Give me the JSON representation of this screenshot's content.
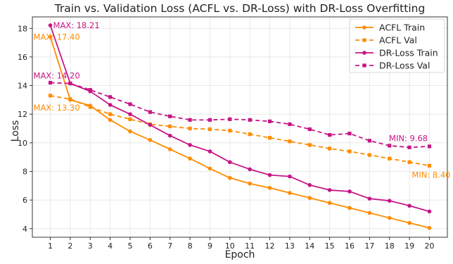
{
  "chart_data": {
    "type": "line",
    "title": "Train vs. Validation Loss (ACFL vs. DR-Loss) with DR-Loss Overfitting",
    "xlabel": "Epoch",
    "ylabel": "Loss",
    "x": [
      1,
      2,
      3,
      4,
      5,
      6,
      7,
      8,
      9,
      10,
      11,
      12,
      13,
      14,
      15,
      16,
      17,
      18,
      19,
      20
    ],
    "xlim": [
      0.1,
      20.9
    ],
    "ylim": [
      3.4,
      18.8
    ],
    "yticks": [
      4,
      6,
      8,
      10,
      12,
      14,
      16,
      18
    ],
    "grid": true,
    "legend_position": "top-right",
    "series": [
      {
        "name": "ACFL Train",
        "color": "#ff8c00",
        "dash": "solid",
        "marker": "circle",
        "values": [
          17.4,
          13.0,
          12.6,
          11.6,
          10.8,
          10.2,
          9.55,
          8.9,
          8.2,
          7.55,
          7.15,
          6.85,
          6.5,
          6.15,
          5.8,
          5.45,
          5.1,
          4.75,
          4.4,
          4.05
        ]
      },
      {
        "name": "ACFL Val",
        "color": "#ff8c00",
        "dash": "dashed",
        "marker": "square",
        "values": [
          13.3,
          13.05,
          12.5,
          12.0,
          11.65,
          11.3,
          11.15,
          11.0,
          10.95,
          10.85,
          10.6,
          10.35,
          10.1,
          9.85,
          9.6,
          9.4,
          9.15,
          8.9,
          8.65,
          8.4
        ]
      },
      {
        "name": "DR-Loss Train",
        "color": "#c71585",
        "dash": "solid",
        "marker": "circle",
        "values": [
          18.21,
          14.15,
          13.6,
          12.65,
          12.0,
          11.25,
          10.5,
          9.85,
          9.4,
          8.65,
          8.15,
          7.75,
          7.65,
          7.05,
          6.7,
          6.6,
          6.1,
          5.95,
          5.6,
          5.2
        ]
      },
      {
        "name": "DR-Loss Val",
        "color": "#c71585",
        "dash": "dashed",
        "marker": "square",
        "values": [
          14.2,
          14.15,
          13.7,
          13.2,
          12.7,
          12.15,
          11.85,
          11.6,
          11.6,
          11.65,
          11.6,
          11.5,
          11.3,
          10.95,
          10.55,
          10.65,
          10.15,
          9.8,
          9.68,
          9.75
        ]
      }
    ],
    "annotations": [
      {
        "text": "MAX: 18.21",
        "series": 2,
        "point": 0
      },
      {
        "text": "MAX: 17.40",
        "series": 0,
        "point": 0
      },
      {
        "text": "MAX: 14.20",
        "series": 3,
        "point": 0
      },
      {
        "text": "MAX: 13.30",
        "series": 1,
        "point": 0
      },
      {
        "text": "MIN: 9.68",
        "series": 3,
        "point": 18
      },
      {
        "text": "MIN: 8.40",
        "series": 1,
        "point": 19
      }
    ]
  }
}
